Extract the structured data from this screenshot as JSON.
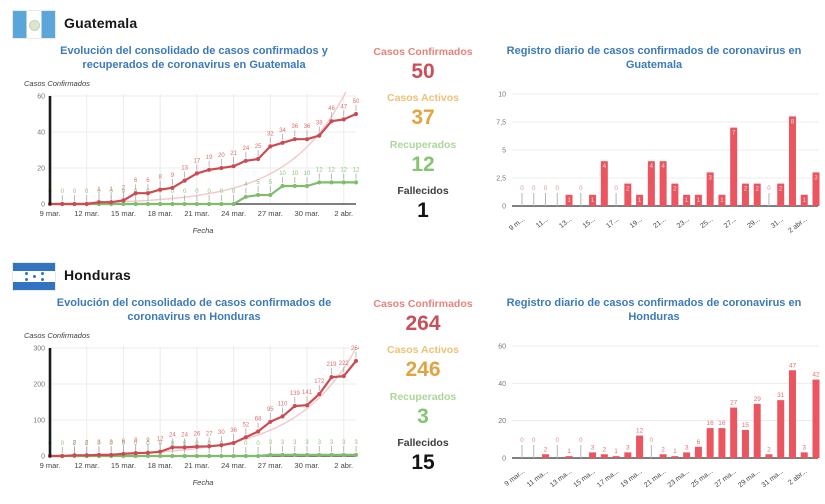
{
  "colors": {
    "title_blue": "#3d7ab8",
    "confirmed_red": "#cc4b52",
    "bar_red": "#ea5560",
    "recovered_green": "#7fbc6d",
    "trend_pink": "#f2c9cb",
    "axis_black": "#1a1a1a",
    "grid_grey": "#ececec"
  },
  "countries": [
    {
      "name": "Guatemala",
      "flag": "guatemala-flag",
      "stats": [
        {
          "label": "Casos Confirmados",
          "value": "50",
          "label_color": "#e6837b",
          "value_color": "#c8505a"
        },
        {
          "label": "Casos Activos",
          "value": "37",
          "label_color": "#eec178",
          "value_color": "#e2a440"
        },
        {
          "label": "Recuperados",
          "value": "12",
          "label_color": "#abd79b",
          "value_color": "#85c471"
        },
        {
          "label": "Fallecidos",
          "value": "1",
          "label_color": "#3d3d3d",
          "value_color": "#141414"
        }
      ]
    },
    {
      "name": "Honduras",
      "flag": "honduras-flag",
      "stats": [
        {
          "label": "Casos Confirmados",
          "value": "264",
          "label_color": "#e6837b",
          "value_color": "#c8505a"
        },
        {
          "label": "Casos Activos",
          "value": "246",
          "label_color": "#eec178",
          "value_color": "#e2a440"
        },
        {
          "label": "Recuperados",
          "value": "3",
          "label_color": "#abd79b",
          "value_color": "#85c471"
        },
        {
          "label": "Fallecidos",
          "value": "15",
          "label_color": "#3d3d3d",
          "value_color": "#141414"
        }
      ]
    }
  ],
  "chart_data": [
    {
      "type": "line",
      "title": "Evolución del consolidado de casos confirmados y recuperados de coronavirus en Guatemala",
      "ylabel": "Casos Confirmados",
      "xlabel": "Fecha",
      "ylim": [
        0,
        60
      ],
      "yticks": [
        0,
        20,
        40,
        60
      ],
      "ytick_labels": [
        "0",
        "20",
        "40",
        "60"
      ],
      "x_count": 26,
      "xtick_every": 3,
      "xtick_labels": [
        "9 mar.",
        "12 mar.",
        "15 mar.",
        "18 mar.",
        "21 mar.",
        "24 mar.",
        "27 mar.",
        "30 mar.",
        "2 abr."
      ],
      "grid": true,
      "series": [
        {
          "name": "Recuperados",
          "color": "#7fbc6d",
          "label_color": "#8cc47c",
          "show_zero_labels": true,
          "values": [
            0,
            0,
            0,
            0,
            0,
            0,
            0,
            0,
            0,
            0,
            0,
            0,
            0,
            0,
            0,
            0,
            4,
            5,
            5,
            10,
            10,
            10,
            12,
            12,
            12,
            12
          ]
        },
        {
          "name": "Casos Confirmados",
          "color": "#cc4b52",
          "label_color": "#dd7070",
          "show_zero_labels": false,
          "values": [
            0,
            0,
            0,
            0,
            1,
            1,
            2,
            6,
            6,
            8,
            9,
            13,
            17,
            19,
            20,
            21,
            24,
            25,
            32,
            34,
            36,
            36,
            38,
            46,
            47,
            50
          ]
        }
      ],
      "trend": {
        "a": 0.365,
        "b": 0.2126,
        "color": "#f2c9cb"
      }
    },
    {
      "type": "bar",
      "title": "Registro diario de casos confirmados de coronavirus en Guatemala",
      "ylim": [
        0,
        10
      ],
      "yticks": [
        0,
        2.5,
        5,
        7.5,
        10
      ],
      "ytick_labels": [
        "0",
        "2,5",
        "5",
        "7,5",
        "10"
      ],
      "xtick_every": 2,
      "xtick_labels": [
        "9 m...",
        "11...",
        "13...",
        "15...",
        "17...",
        "19...",
        "21...",
        "23...",
        "25...",
        "27...",
        "29...",
        "31...",
        "2 abr..."
      ],
      "values": [
        0,
        0,
        0,
        0,
        1,
        0,
        1,
        4,
        0,
        2,
        1,
        4,
        4,
        2,
        1,
        1,
        3,
        1,
        7,
        2,
        2,
        0,
        2,
        8,
        1,
        3
      ],
      "bar_color": "#ea5560",
      "label_style": "inside",
      "bar_label_color": "#f7d6d8",
      "zero_label_color": "#da9090",
      "grid": true
    },
    {
      "type": "line",
      "title": "Evolución del consolidado de casos confirmados de coronavirus en Honduras",
      "ylabel": "Casos Confirmados",
      "xlabel": "Fecha",
      "ylim": [
        0,
        300
      ],
      "yticks": [
        0,
        100,
        200,
        300
      ],
      "ytick_labels": [
        "0",
        "100",
        "200",
        "300"
      ],
      "x_count": 26,
      "xtick_every": 3,
      "xtick_labels": [
        "9 mar.",
        "12 mar.",
        "15 mar.",
        "18 mar.",
        "21 mar.",
        "24 mar.",
        "27 mar.",
        "30 mar.",
        "2 abr."
      ],
      "grid": true,
      "series": [
        {
          "name": "Recuperados",
          "color": "#7fbc6d",
          "label_color": "#8cc47c",
          "show_zero_labels": true,
          "values": [
            0,
            0,
            0,
            0,
            0,
            0,
            0,
            0,
            0,
            0,
            0,
            0,
            0,
            0,
            0,
            0,
            0,
            0,
            3,
            3,
            3,
            3,
            3,
            3,
            3,
            3
          ]
        },
        {
          "name": "Casos Confirmados",
          "color": "#cc4b52",
          "label_color": "#dd7070",
          "show_zero_labels": false,
          "values": [
            0,
            0,
            2,
            2,
            3,
            3,
            6,
            8,
            9,
            12,
            24,
            24,
            26,
            27,
            30,
            36,
            52,
            68,
            95,
            110,
            139,
            141,
            172,
            219,
            222,
            264
          ]
        }
      ],
      "trend": {
        "a": 1.82,
        "b": 0.204,
        "color": "#f2c9cb"
      }
    },
    {
      "type": "bar",
      "title": "Registro diario de casos confirmados de coronavirus en Honduras",
      "ylim": [
        0,
        60
      ],
      "yticks": [
        0,
        20,
        40,
        60
      ],
      "ytick_labels": [
        "0",
        "20",
        "40",
        "60"
      ],
      "xtick_every": 2,
      "xtick_labels": [
        "9 mar...",
        "11 ma...",
        "13 ma...",
        "15 ma...",
        "17 ma...",
        "19 ma...",
        "21 ma...",
        "23 ma...",
        "25 ma...",
        "27 ma...",
        "29 ma...",
        "31 ma...",
        "2 abr..."
      ],
      "values": [
        0,
        0,
        2,
        0,
        1,
        0,
        3,
        2,
        1,
        3,
        12,
        0,
        2,
        1,
        3,
        6,
        16,
        16,
        27,
        15,
        29,
        2,
        31,
        47,
        3,
        42
      ],
      "bar_color": "#ea5560",
      "label_style": "above",
      "bar_label_color": "#e27070",
      "zero_label_color": "#da9090",
      "grid": true
    }
  ]
}
